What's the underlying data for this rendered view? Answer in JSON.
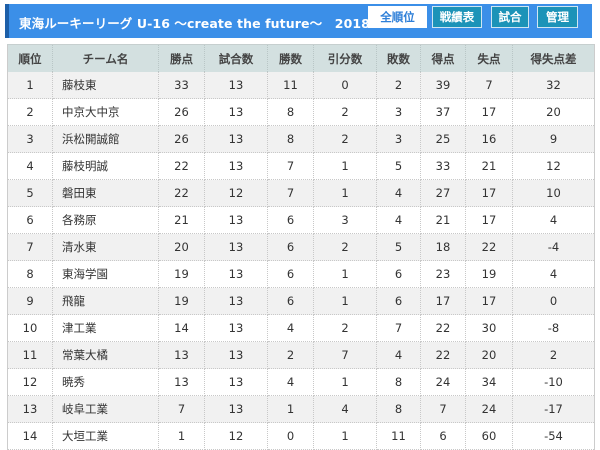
{
  "header": {
    "title": "東海ルーキーリーグ U-16 〜create the future〜　2018",
    "nav": [
      {
        "label": "全順位",
        "active": true
      },
      {
        "label": "戦績表",
        "active": false
      },
      {
        "label": "試合",
        "active": false
      },
      {
        "label": "管理",
        "active": false
      }
    ],
    "colors": {
      "banner": "#3b8fe8",
      "nav_inactive": "#1c93b8",
      "table_header": "#d3e0e0"
    }
  },
  "table": {
    "columns": [
      "順位",
      "チーム名",
      "勝点",
      "試合数",
      "勝数",
      "引分数",
      "敗数",
      "得点",
      "失点",
      "得失点差"
    ],
    "rows": [
      [
        "1",
        "藤枝東",
        "33",
        "13",
        "11",
        "0",
        "2",
        "39",
        "7",
        "32"
      ],
      [
        "2",
        "中京大中京",
        "26",
        "13",
        "8",
        "2",
        "3",
        "37",
        "17",
        "20"
      ],
      [
        "3",
        "浜松開誠館",
        "26",
        "13",
        "8",
        "2",
        "3",
        "25",
        "16",
        "9"
      ],
      [
        "4",
        "藤枝明誠",
        "22",
        "13",
        "7",
        "1",
        "5",
        "33",
        "21",
        "12"
      ],
      [
        "5",
        "磐田東",
        "22",
        "12",
        "7",
        "1",
        "4",
        "27",
        "17",
        "10"
      ],
      [
        "6",
        "各務原",
        "21",
        "13",
        "6",
        "3",
        "4",
        "21",
        "17",
        "4"
      ],
      [
        "7",
        "清水東",
        "20",
        "13",
        "6",
        "2",
        "5",
        "18",
        "22",
        "-4"
      ],
      [
        "8",
        "東海学園",
        "19",
        "13",
        "6",
        "1",
        "6",
        "23",
        "19",
        "4"
      ],
      [
        "9",
        "飛龍",
        "19",
        "13",
        "6",
        "1",
        "6",
        "17",
        "17",
        "0"
      ],
      [
        "10",
        "津工業",
        "14",
        "13",
        "4",
        "2",
        "7",
        "22",
        "30",
        "-8"
      ],
      [
        "11",
        "常葉大橘",
        "13",
        "13",
        "2",
        "7",
        "4",
        "22",
        "20",
        "2"
      ],
      [
        "12",
        "暁秀",
        "13",
        "13",
        "4",
        "1",
        "8",
        "24",
        "34",
        "-10"
      ],
      [
        "13",
        "岐阜工業",
        "7",
        "13",
        "1",
        "4",
        "8",
        "7",
        "24",
        "-17"
      ],
      [
        "14",
        "大垣工業",
        "1",
        "12",
        "0",
        "1",
        "11",
        "6",
        "60",
        "-54"
      ]
    ]
  }
}
